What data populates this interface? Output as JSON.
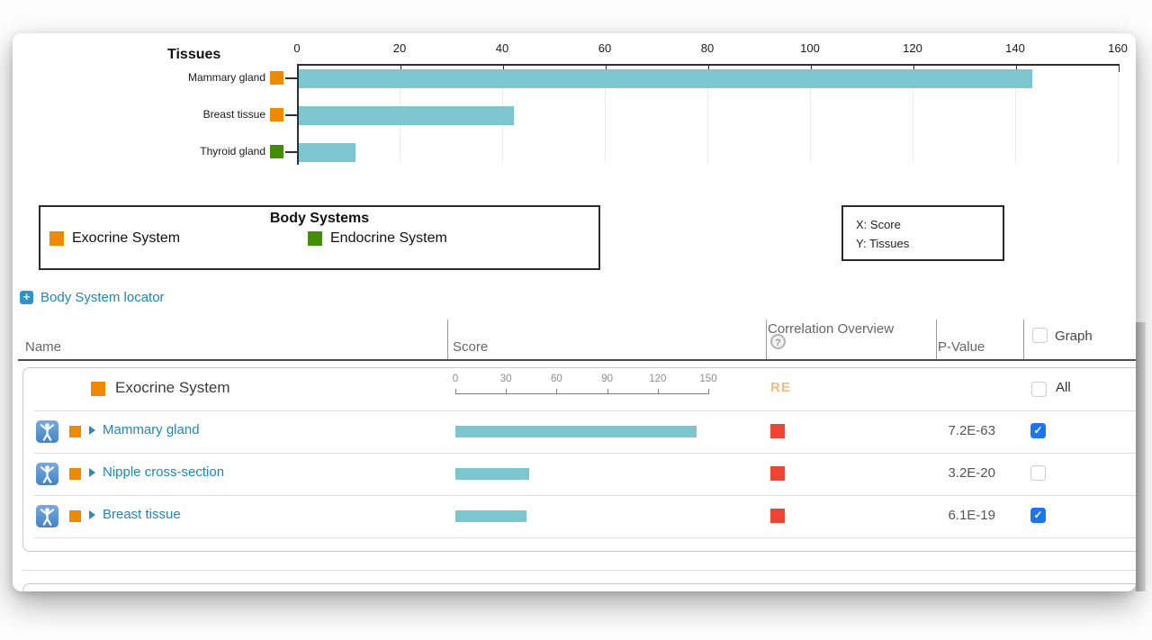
{
  "chart": {
    "title": "Tissues",
    "x_ticks": [
      0,
      20,
      40,
      60,
      80,
      100,
      120,
      140,
      160
    ],
    "x_max": 160,
    "rows": [
      {
        "label": "Mammary gland",
        "system": "Exocrine System",
        "color": "#ef8a00",
        "value": 143
      },
      {
        "label": "Breast tissue",
        "system": "Exocrine System",
        "color": "#ef8a00",
        "value": 42
      },
      {
        "label": "Thyroid gland",
        "system": "Endocrine System",
        "color": "#448e06",
        "value": 11
      }
    ]
  },
  "chart_data": [
    {
      "type": "bar",
      "orientation": "horizontal",
      "title": "Tissues",
      "categories": [
        "Mammary gland",
        "Breast tissue",
        "Thyroid gland"
      ],
      "values": [
        143,
        42,
        11
      ],
      "xlabel": "Score",
      "ylabel": "Tissues",
      "xlim": [
        0,
        160
      ],
      "x_ticks": [
        0,
        20,
        40,
        60,
        80,
        100,
        120,
        140,
        160
      ],
      "grid": true,
      "bar_color": "#7dc5cf"
    },
    {
      "type": "bar",
      "orientation": "horizontal",
      "title": "Score column mini chart",
      "categories": [
        "Mammary gland",
        "Nipple cross-section",
        "Breast tissue"
      ],
      "values": [
        143,
        44,
        42
      ],
      "xlim": [
        0,
        150
      ],
      "x_ticks": [
        0,
        30,
        60,
        90,
        120,
        150
      ],
      "grid": false,
      "bar_color": "#7dc5cf"
    }
  ],
  "legend": {
    "title": "Body Systems",
    "items": [
      {
        "label": "Exocrine System",
        "color": "#ef8a00"
      },
      {
        "label": "Endocrine System",
        "color": "#448e06"
      }
    ]
  },
  "axis_info": {
    "x": "X: Score",
    "y": "Y: Tissues"
  },
  "locator": {
    "label": "Body System locator"
  },
  "table": {
    "columns": {
      "name": "Name",
      "score": "Score",
      "correlation": "Correlation Overview",
      "correlation_help": "?",
      "pvalue": "P-Value",
      "graph": "Graph"
    },
    "group": {
      "label": "Exocrine System",
      "color": "#ef8a00",
      "mini_ticks": [
        0,
        30,
        60,
        90,
        120,
        150
      ],
      "mini_max": 150,
      "correlation_label": "RE",
      "all_label": "All"
    },
    "rows": [
      {
        "name": "Mammary gland",
        "score": 143,
        "pvalue": "7.2E-63",
        "graph_checked": true
      },
      {
        "name": "Nipple cross-section",
        "score": 44,
        "pvalue": "3.2E-20",
        "graph_checked": false
      },
      {
        "name": "Breast tissue",
        "score": 42,
        "pvalue": "6.1E-19",
        "graph_checked": true
      }
    ]
  },
  "colors": {
    "bar": "#7dc5cf",
    "exocrine": "#ef8a00",
    "endocrine": "#448e06",
    "correlation_red": "#f04432",
    "link_blue": "#1f87b5",
    "checkbox_blue": "#1b75ef"
  }
}
